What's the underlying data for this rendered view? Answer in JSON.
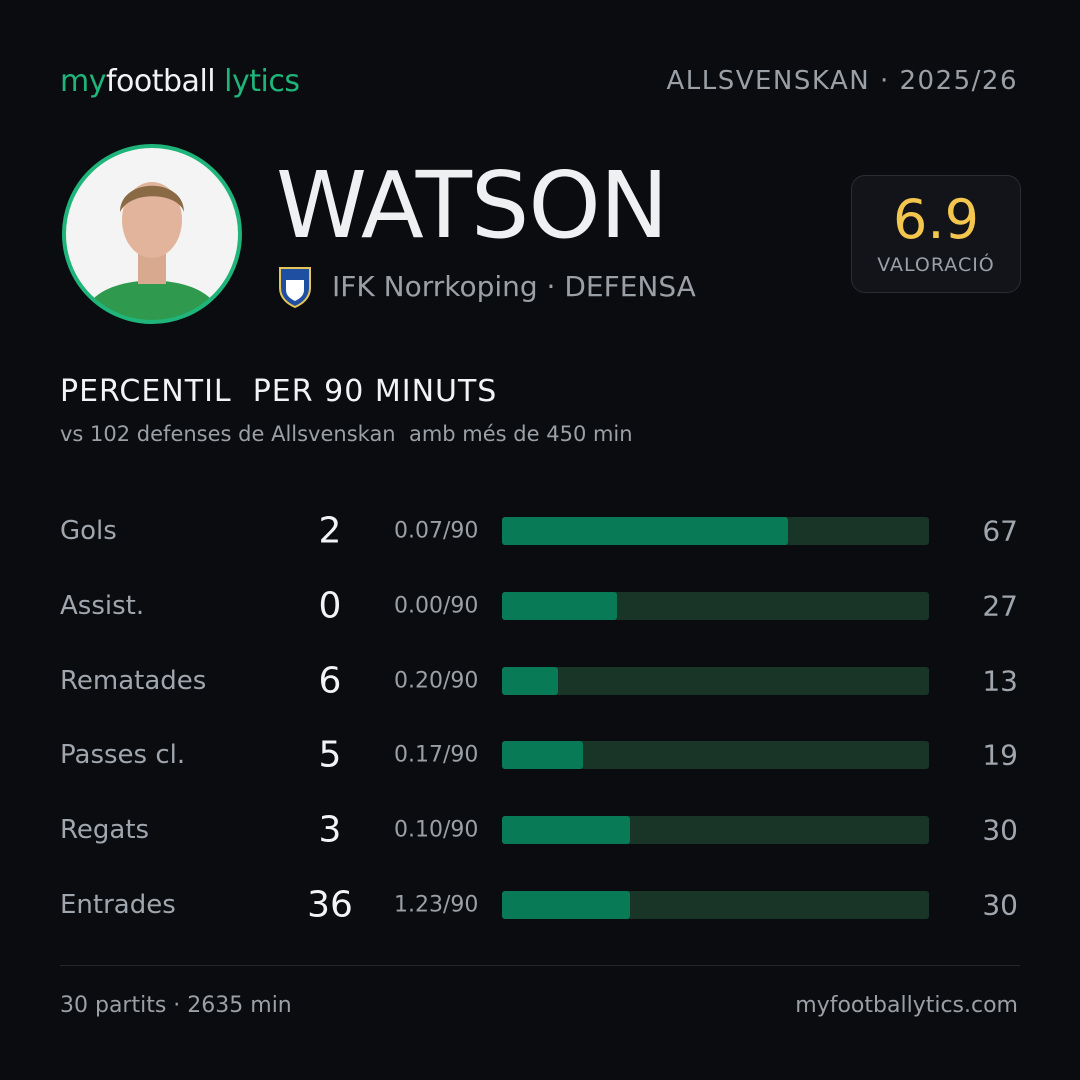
{
  "header": {
    "brand": [
      "my",
      "football",
      "lytics"
    ],
    "competition": "ALLSVENSKAN · 2025/26"
  },
  "player": {
    "name": "WATSON",
    "club": "IFK Norrkoping · DEFENSA",
    "rating": 6.9,
    "rating_label": "VALORACIÓ"
  },
  "section": {
    "title": "PERCENTIL  PER 90 MINUTS",
    "subtitle": "vs 102 defenses de Allsvenskan  amb més de 450 min"
  },
  "stats": [
    {
      "label": "Gols",
      "total": 2,
      "per90": "0.07/90",
      "percentile": 67
    },
    {
      "label": "Assist.",
      "total": 0,
      "per90": "0.00/90",
      "percentile": 27
    },
    {
      "label": "Rematades",
      "total": 6,
      "per90": "0.20/90",
      "percentile": 13
    },
    {
      "label": "Passes cl.",
      "total": 5,
      "per90": "0.17/90",
      "percentile": 19
    },
    {
      "label": "Regats",
      "total": 3,
      "per90": "0.10/90",
      "percentile": 30
    },
    {
      "label": "Entrades",
      "total": 36,
      "per90": "1.23/90",
      "percentile": 30
    }
  ],
  "footer": {
    "left": "30 partits · 2635 min",
    "right": "myfootballytics.com"
  }
}
